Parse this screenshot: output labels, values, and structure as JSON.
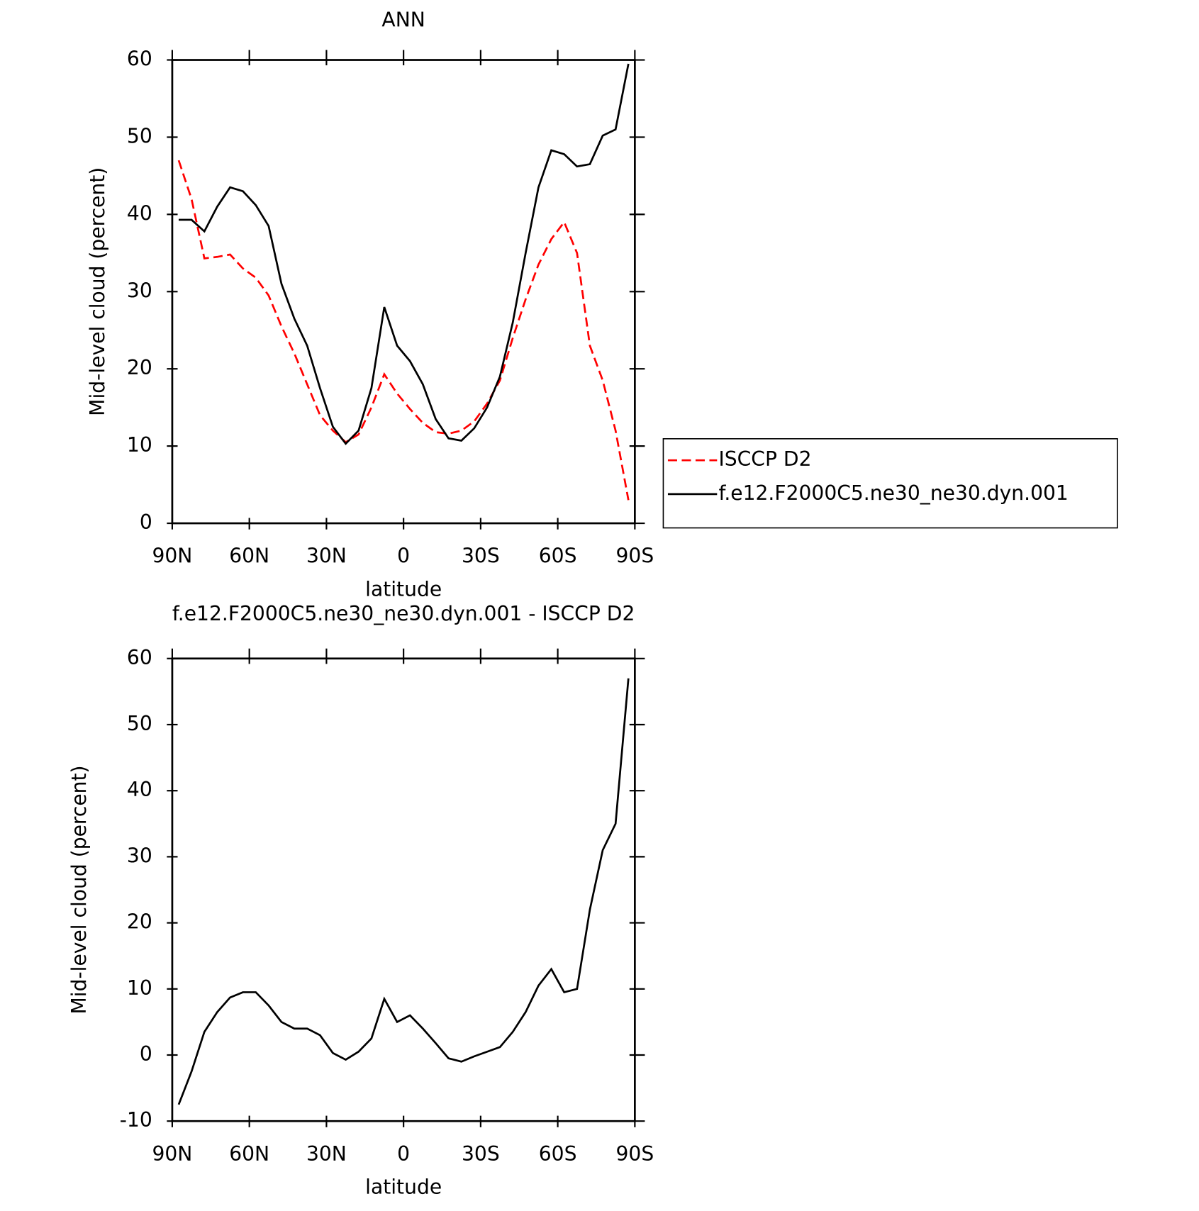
{
  "chart_data": [
    {
      "type": "line",
      "title": "ANN",
      "ylabel": "Mid-level cloud (percent)",
      "xlabel": "latitude",
      "xlim": [
        90,
        -90
      ],
      "xticks": [
        {
          "value": 90,
          "label": "90N"
        },
        {
          "value": 60,
          "label": "60N"
        },
        {
          "value": 30,
          "label": "30N"
        },
        0,
        {
          "value": -30,
          "label": "30S"
        },
        {
          "value": -60,
          "label": "60S"
        },
        {
          "value": -90,
          "label": "90S"
        }
      ],
      "ylim": [
        0,
        60
      ],
      "yticks": [
        0,
        10,
        20,
        30,
        40,
        50,
        60
      ],
      "legend": "right",
      "x": [
        87.5,
        82.5,
        77.5,
        72.5,
        67.5,
        62.5,
        57.5,
        52.5,
        47.5,
        42.5,
        37.5,
        32.5,
        27.5,
        22.5,
        17.5,
        12.5,
        7.5,
        2.5,
        -2.5,
        -7.5,
        -12.5,
        -17.5,
        -22.5,
        -27.5,
        -32.5,
        -37.5,
        -42.5,
        -47.5,
        -52.5,
        -57.5,
        -62.5,
        -67.5,
        -72.5,
        -77.5,
        -82.5,
        -87.5
      ],
      "series": [
        {
          "name": "ISCCP D2",
          "color": "#ff0000",
          "linestyle": "dashed",
          "values": [
            47,
            42,
            34.3,
            34.5,
            34.8,
            33,
            31.8,
            29.5,
            25.5,
            22,
            18,
            14,
            12,
            10.5,
            11.5,
            15,
            19.3,
            16.8,
            14.8,
            13,
            11.8,
            11.6,
            12,
            13.2,
            15.5,
            18.5,
            24,
            29,
            33.5,
            36.8,
            39,
            35,
            23,
            18.5,
            12,
            3
          ]
        },
        {
          "name": "f.e12.F2000C5.ne30_ne30.dyn.001",
          "color": "#000000",
          "linestyle": "solid",
          "values": [
            39.3,
            39.3,
            37.8,
            41,
            43.5,
            43,
            41.2,
            38.5,
            31,
            26.5,
            23,
            17.5,
            12.5,
            10.3,
            12,
            17.5,
            28,
            23,
            21,
            18,
            13.5,
            11,
            10.7,
            12.3,
            15,
            19,
            26,
            35,
            43.5,
            48.3,
            47.8,
            46.2,
            46.5,
            50.2,
            51,
            59.5
          ]
        }
      ]
    },
    {
      "type": "line",
      "title": "f.e12.F2000C5.ne30_ne30.dyn.001 - ISCCP D2",
      "ylabel": "Mid-level cloud (percent)",
      "xlabel": "latitude",
      "xlim": [
        90,
        -90
      ],
      "xticks": [
        {
          "value": 90,
          "label": "90N"
        },
        {
          "value": 60,
          "label": "60N"
        },
        {
          "value": 30,
          "label": "30N"
        },
        0,
        {
          "value": -30,
          "label": "30S"
        },
        {
          "value": -60,
          "label": "60S"
        },
        {
          "value": -90,
          "label": "90S"
        }
      ],
      "ylim": [
        -10,
        60
      ],
      "yticks": [
        -10,
        0,
        10,
        20,
        30,
        40,
        50,
        60
      ],
      "x": [
        87.5,
        82.5,
        77.5,
        72.5,
        67.5,
        62.5,
        57.5,
        52.5,
        47.5,
        42.5,
        37.5,
        32.5,
        27.5,
        22.5,
        17.5,
        12.5,
        7.5,
        2.5,
        -2.5,
        -7.5,
        -12.5,
        -17.5,
        -22.5,
        -27.5,
        -32.5,
        -37.5,
        -42.5,
        -47.5,
        -52.5,
        -57.5,
        -62.5,
        -67.5,
        -72.5,
        -77.5,
        -82.5,
        -87.5
      ],
      "series": [
        {
          "color": "#000000",
          "linestyle": "solid",
          "values": [
            -7.5,
            -2.5,
            3.5,
            6.5,
            8.7,
            9.5,
            9.5,
            7.5,
            5,
            4,
            4,
            3,
            0.3,
            -0.7,
            0.5,
            2.5,
            8.5,
            5,
            6,
            4,
            1.8,
            -0.5,
            -1,
            -0.2,
            0.5,
            1.2,
            3.5,
            6.5,
            10.5,
            13,
            9.5,
            10,
            22,
            31,
            35,
            57
          ]
        }
      ]
    }
  ]
}
